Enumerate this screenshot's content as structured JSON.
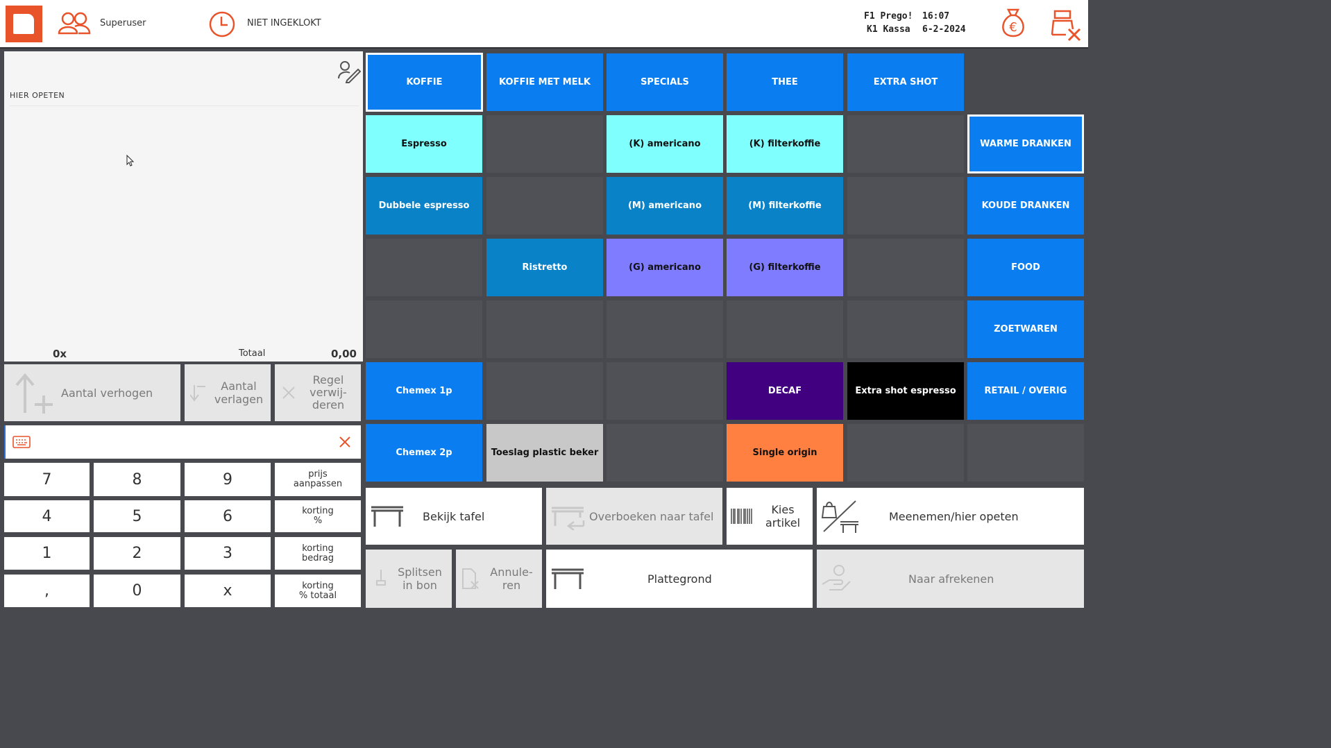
{
  "header": {
    "user": "Superuser",
    "clock_status": "NIET INGEKLOKT",
    "terminal_line1": "F1 Prego!",
    "terminal_line2": "K1 Kassa",
    "time": "16:07",
    "date": "6-2-2024"
  },
  "order": {
    "location_label": "HIER OPETEN",
    "count": "0x",
    "total_label": "Totaal",
    "total_value": "0,00"
  },
  "actions": {
    "increase": "Aantal verhogen",
    "decrease_l1": "Aantal",
    "decrease_l2": "verlagen",
    "remove_l1": "Regel",
    "remove_l2": "verwij-",
    "remove_l3": "deren"
  },
  "input": {
    "value": ""
  },
  "keypad": {
    "k7": "7",
    "k8": "8",
    "k9": "9",
    "k4": "4",
    "k5": "5",
    "k6": "6",
    "k1": "1",
    "k2": "2",
    "k3": "3",
    "kcomma": ",",
    "k0": "0",
    "kx": "x",
    "price_l1": "prijs",
    "price_l2": "aanpassen",
    "disc_pct_l1": "korting",
    "disc_pct_l2": "%",
    "disc_amt_l1": "korting",
    "disc_amt_l2": "bedrag",
    "disc_tot_l1": "korting",
    "disc_tot_l2": "% totaal"
  },
  "tabs": [
    "KOFFIE",
    "KOFFIE MET MELK",
    "SPECIALS",
    "THEE",
    "EXTRA SHOT"
  ],
  "products": {
    "espresso": "Espresso",
    "k_americano": "(K) americano",
    "k_filterkoffie": "(K) filterkoffie",
    "dubbele_espresso": "Dubbele espresso",
    "m_americano": "(M) americano",
    "m_filterkoffie": "(M) filterkoffie",
    "ristretto": "Ristretto",
    "g_americano": "(G) americano",
    "g_filterkoffie": "(G) filterkoffie",
    "chemex_1p": "Chemex 1p",
    "decaf": "DECAF",
    "extra_shot_espresso": "Extra shot espresso",
    "chemex_2p": "Chemex 2p",
    "toeslag": "Toeslag plastic beker",
    "single_origin": "Single origin"
  },
  "categories": [
    "WARME DRANKEN",
    "KOUDE DRANKEN",
    "FOOD",
    "ZOETWAREN",
    "RETAIL / OVERIG"
  ],
  "bottom": {
    "bekijk_tafel": "Bekijk tafel",
    "overboeken": "Overboeken naar tafel",
    "kies_l1": "Kies",
    "kies_l2": "artikel",
    "meenemen": "Meenemen/hier opeten",
    "splitsen_l1": "Splitsen",
    "splitsen_l2": "in bon",
    "annuleren_l1": "Annule-",
    "annuleren_l2": "ren",
    "plattegrond": "Plattegrond",
    "afrekenen": "Naar afrekenen"
  },
  "colors": {
    "accent": "#e8532a",
    "tile_blue": "#0a7ef0",
    "tile_cyan": "#80ffff",
    "tile_mid_blue": "#0a82c8",
    "tile_lavender": "#807cff",
    "tile_purple": "#400080",
    "tile_orange": "#ff8040",
    "background": "#47494e"
  },
  "icons": [
    "app-logo-icon",
    "users-icon",
    "clock-icon",
    "money-bag-icon",
    "register-close-icon",
    "signature-icon",
    "keyboard-icon",
    "clear-icon",
    "barcode-icon",
    "table-icon",
    "takeaway-icon",
    "pay-icon"
  ]
}
